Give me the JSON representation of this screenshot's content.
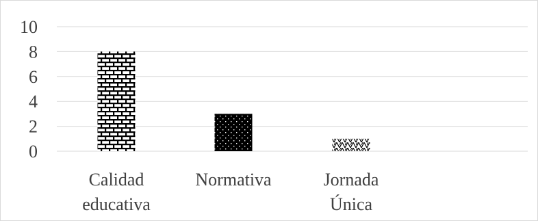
{
  "chart_data": {
    "type": "bar",
    "categories": [
      [
        "Calidad",
        "educativa"
      ],
      [
        "Normativa"
      ],
      [
        "Jornada",
        "Única"
      ]
    ],
    "values": [
      8,
      3,
      1
    ],
    "title": "",
    "xlabel": "",
    "ylabel": "",
    "ylim": [
      0,
      10
    ],
    "yticks": [
      "0",
      "2",
      "4",
      "6",
      "8",
      "10"
    ],
    "grid": true,
    "legend": "none",
    "bar_patterns": [
      "brick",
      "dots",
      "zigzag"
    ],
    "colors": {
      "bar_fill": "#000000",
      "pattern_background": "#ffffff",
      "grid": "#d9d9d9",
      "text": "#404040"
    }
  }
}
